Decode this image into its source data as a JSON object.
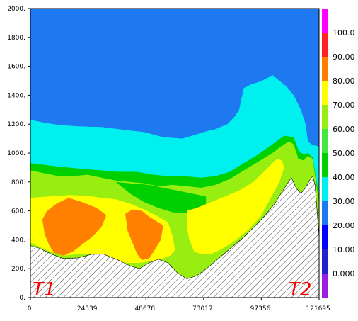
{
  "chart_data": {
    "type": "heatmap",
    "x_ticks": [
      "0.",
      "24339.",
      "48678.",
      "73017.",
      "97356.",
      "121695."
    ],
    "y_ticks": [
      "0.",
      "200.",
      "400.",
      "600.",
      "800.",
      "1000.",
      "1200.",
      "1400.",
      "1600.",
      "1800.",
      "2000."
    ],
    "xlim": [
      0,
      121695
    ],
    "ylim": [
      0,
      2000
    ],
    "colorbar": {
      "tick_labels": [
        "0.000",
        "10.00",
        "20.00",
        "30.00",
        "40.00",
        "50.00",
        "60.00",
        "70.00",
        "80.00",
        "90.00",
        "100.0"
      ],
      "range": [
        -10,
        110
      ],
      "levels": [
        {
          "from": -10,
          "to": 0,
          "color": "#9a1ee0"
        },
        {
          "from": 0,
          "to": 10,
          "color": "#2222cc"
        },
        {
          "from": 10,
          "to": 20,
          "color": "#0000ff"
        },
        {
          "from": 20,
          "to": 30,
          "color": "#1e78f0"
        },
        {
          "from": 30,
          "to": 40,
          "color": "#00f0f0"
        },
        {
          "from": 40,
          "to": 50,
          "color": "#00d000"
        },
        {
          "from": 50,
          "to": 60,
          "color": "#44e844"
        },
        {
          "from": 60,
          "to": 70,
          "color": "#99ee11"
        },
        {
          "from": 70,
          "to": 80,
          "color": "#ffff00"
        },
        {
          "from": 80,
          "to": 90,
          "color": "#ff8000"
        },
        {
          "from": 90,
          "to": 100,
          "color": "#ff2020"
        },
        {
          "from": 100,
          "to": 110,
          "color": "#ff00ff"
        }
      ]
    },
    "terrain": [
      [
        0,
        360
      ],
      [
        4000,
        340
      ],
      [
        9000,
        300
      ],
      [
        14000,
        270
      ],
      [
        20000,
        275
      ],
      [
        26000,
        300
      ],
      [
        31000,
        300
      ],
      [
        37000,
        260
      ],
      [
        42000,
        220
      ],
      [
        46000,
        200
      ],
      [
        50000,
        240
      ],
      [
        54000,
        265
      ],
      [
        58000,
        240
      ],
      [
        62000,
        170
      ],
      [
        66000,
        130
      ],
      [
        70000,
        150
      ],
      [
        75000,
        210
      ],
      [
        80000,
        280
      ],
      [
        85000,
        350
      ],
      [
        90000,
        420
      ],
      [
        95000,
        500
      ],
      [
        99000,
        570
      ],
      [
        103000,
        650
      ],
      [
        106000,
        730
      ],
      [
        108000,
        780
      ],
      [
        110000,
        830
      ],
      [
        112000,
        760
      ],
      [
        114000,
        720
      ],
      [
        116000,
        760
      ],
      [
        118000,
        820
      ],
      [
        119000,
        840
      ],
      [
        120000,
        780
      ],
      [
        121695,
        420
      ]
    ],
    "regions": [
      {
        "name": "z2",
        "color": "#00f0f0",
        "points": [
          [
            0,
            1230
          ],
          [
            6000,
            1210
          ],
          [
            12000,
            1195
          ],
          [
            20000,
            1185
          ],
          [
            30000,
            1180
          ],
          [
            40000,
            1160
          ],
          [
            48000,
            1145
          ],
          [
            56000,
            1110
          ],
          [
            64000,
            1100
          ],
          [
            70000,
            1130
          ],
          [
            74000,
            1150
          ],
          [
            78000,
            1165
          ],
          [
            83000,
            1200
          ],
          [
            86000,
            1250
          ],
          [
            88000,
            1300
          ],
          [
            89000,
            1380
          ],
          [
            90000,
            1450
          ],
          [
            93000,
            1475
          ],
          [
            97000,
            1495
          ],
          [
            100000,
            1520
          ],
          [
            102000,
            1540
          ],
          [
            105000,
            1500
          ],
          [
            108000,
            1460
          ],
          [
            111000,
            1400
          ],
          [
            114000,
            1300
          ],
          [
            116000,
            1200
          ],
          [
            117000,
            1080
          ],
          [
            119000,
            1055
          ],
          [
            121695,
            1045
          ],
          [
            121695,
            400
          ],
          [
            0,
            400
          ]
        ]
      },
      {
        "name": "z3",
        "color": "#00d000",
        "points": [
          [
            0,
            930
          ],
          [
            5000,
            920
          ],
          [
            10000,
            910
          ],
          [
            16000,
            900
          ],
          [
            22000,
            890
          ],
          [
            30000,
            880
          ],
          [
            38000,
            870
          ],
          [
            45000,
            870
          ],
          [
            52000,
            850
          ],
          [
            58000,
            840
          ],
          [
            65000,
            840
          ],
          [
            72000,
            830
          ],
          [
            78000,
            840
          ],
          [
            84000,
            870
          ],
          [
            90000,
            930
          ],
          [
            96000,
            990
          ],
          [
            102000,
            1060
          ],
          [
            107000,
            1120
          ],
          [
            111000,
            1110
          ],
          [
            113000,
            1020
          ],
          [
            115000,
            990
          ],
          [
            117000,
            1000
          ],
          [
            119000,
            970
          ],
          [
            121695,
            700
          ],
          [
            121695,
            400
          ],
          [
            0,
            400
          ]
        ]
      },
      {
        "name": "z4",
        "color": "#99ee11",
        "points": [
          [
            0,
            880
          ],
          [
            6000,
            860
          ],
          [
            12000,
            840
          ],
          [
            18000,
            840
          ],
          [
            24000,
            850
          ],
          [
            30000,
            830
          ],
          [
            36000,
            810
          ],
          [
            42000,
            800
          ],
          [
            48000,
            790
          ],
          [
            54000,
            770
          ],
          [
            60000,
            780
          ],
          [
            66000,
            770
          ],
          [
            72000,
            760
          ],
          [
            78000,
            780
          ],
          [
            84000,
            820
          ],
          [
            90000,
            880
          ],
          [
            96000,
            940
          ],
          [
            102000,
            1000
          ],
          [
            106000,
            1050
          ],
          [
            109000,
            1080
          ],
          [
            111000,
            1060
          ],
          [
            113000,
            960
          ],
          [
            115000,
            950
          ],
          [
            117000,
            980
          ],
          [
            119000,
            960
          ],
          [
            121695,
            650
          ],
          [
            121695,
            0
          ],
          [
            0,
            0
          ]
        ]
      },
      {
        "name": "z5",
        "color": "#00d000",
        "points": [
          [
            36000,
            800
          ],
          [
            42000,
            790
          ],
          [
            50000,
            780
          ],
          [
            56000,
            760
          ],
          [
            62000,
            740
          ],
          [
            68000,
            720
          ],
          [
            74000,
            700
          ],
          [
            74000,
            590
          ],
          [
            68000,
            580
          ],
          [
            60000,
            590
          ],
          [
            54000,
            620
          ],
          [
            48000,
            660
          ],
          [
            42000,
            720
          ]
        ]
      },
      {
        "name": "z6",
        "color": "#ffff00",
        "points": [
          [
            0,
            690
          ],
          [
            8000,
            700
          ],
          [
            16000,
            710
          ],
          [
            24000,
            705
          ],
          [
            30000,
            690
          ],
          [
            36000,
            680
          ],
          [
            42000,
            650
          ],
          [
            48000,
            610
          ],
          [
            54000,
            560
          ],
          [
            58000,
            520
          ],
          [
            60000,
            420
          ],
          [
            61000,
            330
          ],
          [
            59000,
            290
          ],
          [
            54000,
            260
          ],
          [
            46000,
            240
          ],
          [
            40000,
            240
          ],
          [
            34000,
            270
          ],
          [
            28000,
            300
          ],
          [
            20000,
            300
          ],
          [
            14000,
            290
          ],
          [
            8000,
            320
          ],
          [
            0,
            380
          ]
        ]
      },
      {
        "name": "z7",
        "color": "#ffff00",
        "points": [
          [
            66000,
            600
          ],
          [
            70000,
            620
          ],
          [
            76000,
            660
          ],
          [
            82000,
            700
          ],
          [
            88000,
            740
          ],
          [
            94000,
            800
          ],
          [
            99000,
            880
          ],
          [
            102000,
            930
          ],
          [
            104000,
            960
          ],
          [
            106000,
            950
          ],
          [
            107000,
            900
          ],
          [
            105000,
            800
          ],
          [
            101000,
            680
          ],
          [
            97000,
            560
          ],
          [
            92000,
            470
          ],
          [
            86000,
            390
          ],
          [
            80000,
            330
          ],
          [
            76000,
            300
          ],
          [
            72000,
            300
          ],
          [
            69000,
            320
          ],
          [
            67000,
            400
          ],
          [
            66000,
            480
          ]
        ]
      },
      {
        "name": "z8",
        "color": "#ff8000",
        "points": [
          [
            5000,
            540
          ],
          [
            7000,
            600
          ],
          [
            11000,
            650
          ],
          [
            16000,
            690
          ],
          [
            22000,
            660
          ],
          [
            28000,
            620
          ],
          [
            32000,
            570
          ],
          [
            30000,
            490
          ],
          [
            26000,
            420
          ],
          [
            22000,
            370
          ],
          [
            18000,
            320
          ],
          [
            14000,
            290
          ],
          [
            10000,
            310
          ],
          [
            8000,
            360
          ],
          [
            6000,
            440
          ]
        ]
      },
      {
        "name": "z9",
        "color": "#ff8000",
        "points": [
          [
            40000,
            580
          ],
          [
            43000,
            610
          ],
          [
            47000,
            600
          ],
          [
            50000,
            560
          ],
          [
            53000,
            530
          ],
          [
            56000,
            500
          ],
          [
            55000,
            400
          ],
          [
            52000,
            320
          ],
          [
            50000,
            270
          ],
          [
            47000,
            260
          ],
          [
            45000,
            300
          ],
          [
            43000,
            380
          ],
          [
            41000,
            460
          ]
        ]
      },
      {
        "name": "z10",
        "color": "#00f0f0",
        "points": [
          [
            92000,
            1280
          ],
          [
            94000,
            1290
          ],
          [
            96000,
            1330
          ],
          [
            97000,
            1340
          ],
          [
            96000,
            1300
          ],
          [
            94000,
            1250
          ],
          [
            92000,
            1240
          ]
        ]
      }
    ],
    "annotations": [
      "T1",
      "T2"
    ]
  }
}
